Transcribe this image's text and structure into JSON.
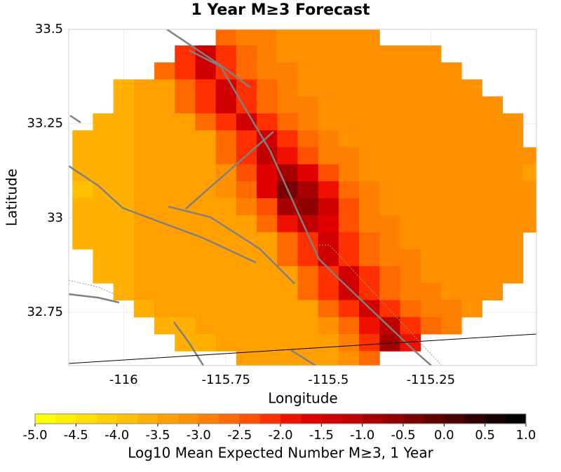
{
  "chart_data": {
    "type": "heatmap",
    "title": "1 Year M≥3 Forecast",
    "x_label": "Longitude",
    "y_label": "Latitude",
    "x": [
      -116.1,
      -116.05,
      -116.0,
      -115.95,
      -115.9,
      -115.85,
      -115.8,
      -115.75,
      -115.7,
      -115.65,
      -115.6,
      -115.55,
      -115.5,
      -115.45,
      -115.4,
      -115.35,
      -115.3,
      -115.25,
      -115.2,
      -115.15,
      -115.1,
      -115.05,
      -115.0
    ],
    "y": [
      33.48,
      33.435,
      33.39,
      33.345,
      33.3,
      33.255,
      33.21,
      33.165,
      33.12,
      33.075,
      33.03,
      32.985,
      32.94,
      32.895,
      32.85,
      32.805,
      32.76,
      32.715,
      32.67,
      32.625
    ],
    "z": [
      [
        null,
        null,
        null,
        null,
        null,
        null,
        null,
        -2.75,
        -3,
        -3,
        -3.25,
        -3.25,
        -3.25,
        -3.25,
        -3.25,
        null,
        null,
        null,
        null,
        null,
        null,
        null,
        null
      ],
      [
        null,
        null,
        null,
        null,
        null,
        -2.25,
        -1.5,
        -2.25,
        -2.75,
        -3,
        -3.25,
        -3.25,
        -3.25,
        -3.25,
        -3.25,
        -3.25,
        -3.25,
        -3.25,
        null,
        null,
        null,
        null,
        null
      ],
      [
        null,
        null,
        null,
        null,
        -2.75,
        -2.25,
        -1.5,
        -2.25,
        -2.75,
        -3,
        -3,
        -3.25,
        -3.25,
        -3.25,
        -3.25,
        -3.25,
        -3.25,
        -3.25,
        -3.25,
        null,
        null,
        null,
        null
      ],
      [
        null,
        null,
        -3.75,
        -3.5,
        -3.5,
        -2.75,
        -2.25,
        -1.5,
        -2.25,
        -2.75,
        -3,
        -3.25,
        -3.25,
        -3.25,
        -3.25,
        -3.25,
        -3.25,
        -3.25,
        -3.25,
        -3.25,
        null,
        null,
        null
      ],
      [
        null,
        null,
        -3.75,
        -3.5,
        -3.5,
        -2.75,
        -2.25,
        -1.5,
        -2.25,
        -2.75,
        -3,
        -3,
        -3.25,
        -3.25,
        -3.25,
        -3.25,
        -3.25,
        -3.25,
        -3.25,
        -3.25,
        -3.25,
        null,
        null
      ],
      [
        null,
        -3.75,
        -3.75,
        -3.5,
        -3.5,
        -3.5,
        -2.75,
        -2.25,
        -1.5,
        -2.25,
        -2.75,
        -3,
        -3.25,
        -3.25,
        -3.25,
        -3.25,
        -3.25,
        -3.25,
        -3.25,
        -3.25,
        -3.25,
        -3.25,
        null
      ],
      [
        -3.75,
        -3.75,
        -3.75,
        -3.5,
        -3.5,
        -3.5,
        -3.5,
        -2.75,
        -2.25,
        -1.5,
        -2.25,
        -2.75,
        -3,
        -3.25,
        -3.25,
        -3.25,
        -3.25,
        -3.25,
        -3.25,
        -3.25,
        -3.25,
        -3.25,
        null
      ],
      [
        -3.75,
        -3.75,
        -3.75,
        -3.5,
        -3.5,
        -3.5,
        -3.5,
        -2.75,
        -2.25,
        -1.25,
        -2,
        -2.5,
        -3,
        -3,
        -3.25,
        -3.25,
        -3.25,
        -3.25,
        -3.25,
        -3.25,
        -3.25,
        -3.25,
        -3.25
      ],
      [
        -3.75,
        -3.75,
        -3.75,
        -3.5,
        -3.5,
        -3.5,
        -3.5,
        -3.25,
        -2.5,
        -1.75,
        -1,
        -1.75,
        -2.5,
        -3,
        -3.25,
        -3.25,
        -3.25,
        -3.25,
        -3.25,
        -3.25,
        -3.25,
        -3.25,
        -3.5
      ],
      [
        -4,
        -3.75,
        -3.75,
        -3.5,
        -3.5,
        -3.5,
        -3.5,
        -3.25,
        -2.75,
        -1.75,
        -0.5,
        -1,
        -2,
        -2.75,
        -3,
        -3.25,
        -3.25,
        -3.25,
        -3.25,
        -3.25,
        -3.25,
        -3.25,
        -3.25
      ],
      [
        -3.75,
        -3.75,
        -3.75,
        -3.5,
        -3.5,
        -3.5,
        -3.5,
        -3.5,
        -3,
        -2.5,
        -1,
        -0.75,
        -1.5,
        -2.5,
        -3,
        -3.25,
        -3.25,
        -3.25,
        -3.25,
        -3.25,
        -3.25,
        -3.25,
        -3.25
      ],
      [
        -3.75,
        -3.75,
        -3.75,
        -3.5,
        -3.5,
        -3.5,
        -3.5,
        -3.5,
        -3.5,
        -2.75,
        -2,
        -1.25,
        -1.75,
        -2.5,
        -3,
        -3,
        -3.25,
        -3.25,
        -3.25,
        -3.25,
        -3.25,
        -3.25,
        -3.25
      ],
      [
        -3.75,
        -3.75,
        -3.75,
        -3.5,
        -3.5,
        -3.5,
        -3.5,
        -3.5,
        -3.5,
        -3.5,
        -2.75,
        -2.25,
        -1.5,
        -2.25,
        -2.75,
        -3,
        -3.25,
        -3.25,
        -3.25,
        -3.25,
        -3.25,
        -3.25,
        null
      ],
      [
        null,
        -3.75,
        -3.75,
        -3.5,
        -3.5,
        -3.5,
        -3.5,
        -3.5,
        -3.5,
        -3.5,
        -2.75,
        -2.25,
        -1.5,
        -2.25,
        -2.75,
        -3,
        -3,
        -3.25,
        -3.25,
        -3.25,
        -3.25,
        -3.25,
        null
      ],
      [
        null,
        -3.75,
        -3.75,
        -3.5,
        -3.5,
        -3.5,
        -3.5,
        -3.5,
        -3.5,
        -3.5,
        -3.5,
        -2.75,
        -2.25,
        -1.5,
        -2.25,
        -2.75,
        -3,
        -3.25,
        -3.25,
        -3.25,
        -3.25,
        -3.25,
        null
      ],
      [
        null,
        null,
        -3.75,
        -3.5,
        -3.5,
        -3.5,
        -3.5,
        -3.5,
        -3.5,
        -3.5,
        -3.5,
        -2.75,
        -2.25,
        -1.5,
        -2.25,
        -2.75,
        -3,
        -3,
        -3.25,
        -3.25,
        -3.25,
        null,
        null
      ],
      [
        null,
        null,
        null,
        -3.75,
        -3.5,
        -3.5,
        -3.5,
        -3.5,
        -3.5,
        -3.5,
        -3.5,
        -3.5,
        -2.75,
        -2.25,
        -1.5,
        -2.25,
        -2.75,
        -3,
        -3,
        -3.25,
        null,
        null,
        null
      ],
      [
        null,
        null,
        null,
        null,
        -3.75,
        -3.75,
        -3.5,
        -3.5,
        -3.5,
        -3.5,
        -3.5,
        -3.5,
        -3.25,
        -2.75,
        -2,
        -1.25,
        -2.25,
        -2.75,
        -3,
        null,
        null,
        null,
        null
      ],
      [
        null,
        null,
        null,
        null,
        null,
        -3.75,
        -3.75,
        -3.5,
        -3.5,
        -3.5,
        -3.5,
        -3.5,
        -3.5,
        -3,
        -2.25,
        -1,
        -2,
        null,
        null,
        null,
        null,
        null,
        null
      ],
      [
        null,
        null,
        null,
        null,
        null,
        null,
        null,
        null,
        -3.5,
        -3.5,
        -3.5,
        -3.5,
        -3.5,
        -3.25,
        -2.75,
        null,
        null,
        null,
        null,
        null,
        null,
        null,
        null
      ]
    ],
    "xlim": [
      -116.134,
      -114.992
    ],
    "ylim": [
      32.609,
      33.5
    ],
    "xticks": [
      -116,
      -115.75,
      -115.5,
      -115.25
    ],
    "yticks": [
      33.5,
      33.25,
      33,
      32.75
    ],
    "grid": true,
    "colorbar": {
      "label": "Log10 Mean Expected Number M≥3, 1 Year",
      "zlim": [
        -5,
        1
      ],
      "ticks": [
        {
          "value": -5,
          "label": "-5.0"
        },
        -4.5,
        {
          "value": -4,
          "label": "-4.0"
        },
        -3.5,
        {
          "value": -3,
          "label": "-3.0"
        },
        -2.5,
        {
          "value": -2,
          "label": "-2.0"
        },
        -1.5,
        {
          "value": -1,
          "label": "-1.0"
        },
        -0.5,
        {
          "value": 0,
          "label": "0.0"
        },
        0.5,
        {
          "value": 1,
          "label": "1.0"
        }
      ],
      "colors": [
        "#ffff00",
        "#fff000",
        "#ffe000",
        "#ffd000",
        "#ffc000",
        "#ffb000",
        "#ffa000",
        "#ff9000",
        "#ff8000",
        "#ff6a00",
        "#ff5000",
        "#ff3000",
        "#f01000",
        "#e00000",
        "#d00000",
        "#c00000",
        "#a80000",
        "#900000",
        "#780000",
        "#600000",
        "#480000",
        "#300000",
        "#180000",
        "#000000"
      ]
    }
  }
}
